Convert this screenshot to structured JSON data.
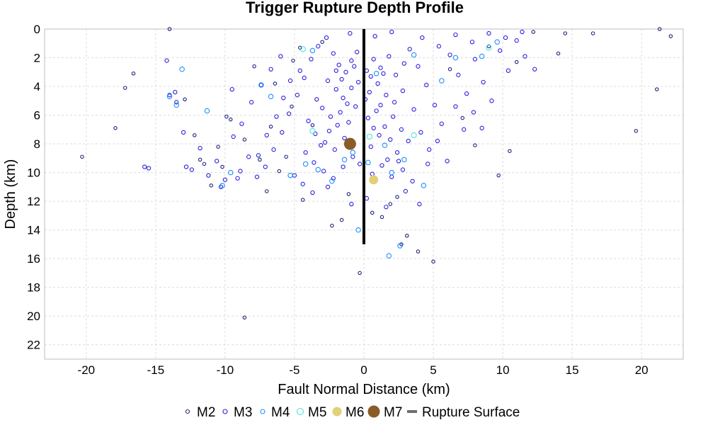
{
  "chart_data": {
    "type": "scatter",
    "title": "Trigger Rupture Depth Profile",
    "xlabel": "Fault Normal Distance (km)",
    "ylabel": "Depth (km)",
    "xlim": [
      -23,
      23
    ],
    "ylim": [
      0,
      23
    ],
    "y_inverted": true,
    "x_ticks": [
      -20,
      -15,
      -10,
      -5,
      0,
      5,
      10,
      15,
      20
    ],
    "y_ticks": [
      0,
      2,
      4,
      6,
      8,
      10,
      12,
      14,
      16,
      18,
      20,
      22
    ],
    "grid": true,
    "legend_position": "bottom",
    "series": [
      {
        "name": "M2",
        "color": "#1a237e",
        "marker": "open-circle-small",
        "points": [
          [
            -14.0,
            0.0
          ],
          [
            -8.6,
            20.1
          ],
          [
            -20.3,
            8.9
          ],
          [
            -17.9,
            6.9
          ],
          [
            -16.6,
            3.1
          ],
          [
            -17.2,
            4.1
          ],
          [
            -12.9,
            4.9
          ],
          [
            -11.5,
            9.4
          ],
          [
            -11.0,
            10.9
          ],
          [
            -10.2,
            9.6
          ],
          [
            -9.6,
            6.3
          ],
          [
            -8.6,
            7.7
          ],
          [
            -7.5,
            9.1
          ],
          [
            -7.0,
            11.3
          ],
          [
            -6.7,
            6.8
          ],
          [
            -6.1,
            9.9
          ],
          [
            -5.6,
            8.9
          ],
          [
            -5.2,
            5.4
          ],
          [
            -4.4,
            11.9
          ],
          [
            -3.7,
            6.7
          ],
          [
            -2.3,
            13.7
          ],
          [
            -1.6,
            13.3
          ],
          [
            -0.3,
            17.0
          ],
          [
            1.3,
            13.1
          ],
          [
            2.7,
            15.0
          ],
          [
            3.1,
            14.4
          ],
          [
            3.9,
            15.5
          ],
          [
            5.0,
            16.2
          ],
          [
            9.7,
            10.2
          ],
          [
            10.5,
            8.5
          ],
          [
            14.0,
            1.7
          ],
          [
            14.5,
            0.3
          ],
          [
            16.5,
            0.3
          ],
          [
            19.6,
            7.1
          ],
          [
            21.1,
            4.2
          ],
          [
            21.3,
            0.0
          ],
          [
            22.1,
            0.5
          ],
          [
            -9.9,
            6.1
          ],
          [
            -10.5,
            8.2
          ],
          [
            -11.8,
            9.1
          ],
          [
            -12.2,
            7.4
          ],
          [
            -6.4,
            3.8
          ],
          [
            -7.9,
            2.6
          ],
          [
            -5.1,
            2.2
          ],
          [
            -4.6,
            1.3
          ],
          [
            -3.0,
            0.9
          ],
          [
            0.6,
            12.8
          ],
          [
            1.9,
            12.2
          ],
          [
            -1.1,
            11.5
          ],
          [
            2.4,
            11.7
          ],
          [
            6.2,
            2.8
          ],
          [
            7.1,
            6.2
          ],
          [
            8.0,
            8.1
          ],
          [
            9.0,
            1.2
          ],
          [
            11.0,
            2.3
          ],
          [
            12.2,
            0.2
          ]
        ]
      },
      {
        "name": "M3",
        "color": "#2a1fd9",
        "marker": "open-circle",
        "points": [
          [
            -2.2,
            1.7
          ],
          [
            -1.8,
            2.5
          ],
          [
            -1.3,
            3.0
          ],
          [
            -0.9,
            2.2
          ],
          [
            -0.5,
            1.6
          ],
          [
            0.2,
            2.9
          ],
          [
            0.7,
            2.1
          ],
          [
            1.2,
            2.7
          ],
          [
            1.8,
            1.9
          ],
          [
            2.3,
            3.2
          ],
          [
            2.9,
            2.4
          ],
          [
            -2.6,
            3.6
          ],
          [
            -2.0,
            4.2
          ],
          [
            -1.5,
            4.8
          ],
          [
            -0.9,
            4.1
          ],
          [
            -0.4,
            3.7
          ],
          [
            0.4,
            4.4
          ],
          [
            1.0,
            3.8
          ],
          [
            1.6,
            4.6
          ],
          [
            2.2,
            5.1
          ],
          [
            2.8,
            4.3
          ],
          [
            -3.0,
            5.5
          ],
          [
            -2.4,
            6.1
          ],
          [
            -1.7,
            5.8
          ],
          [
            -1.1,
            6.5
          ],
          [
            -0.6,
            5.4
          ],
          [
            0.3,
            6.2
          ],
          [
            0.9,
            5.7
          ],
          [
            1.5,
            6.8
          ],
          [
            2.1,
            6.1
          ],
          [
            2.7,
            7.0
          ],
          [
            -3.5,
            7.3
          ],
          [
            -2.8,
            7.9
          ],
          [
            -2.1,
            8.4
          ],
          [
            -1.4,
            7.6
          ],
          [
            -0.8,
            8.9
          ],
          [
            0.5,
            8.2
          ],
          [
            1.1,
            7.4
          ],
          [
            1.7,
            9.1
          ],
          [
            2.4,
            8.6
          ],
          [
            3.2,
            7.8
          ],
          [
            -4.2,
            8.6
          ],
          [
            -3.6,
            9.3
          ],
          [
            -2.9,
            9.9
          ],
          [
            -2.2,
            10.4
          ],
          [
            -1.5,
            9.6
          ],
          [
            0.6,
            10.1
          ],
          [
            1.3,
            9.5
          ],
          [
            2.0,
            10.3
          ],
          [
            2.8,
            9.8
          ],
          [
            3.5,
            10.6
          ],
          [
            -4.8,
            4.6
          ],
          [
            -4.3,
            3.4
          ],
          [
            -3.8,
            2.1
          ],
          [
            -3.3,
            1.2
          ],
          [
            -2.7,
            0.6
          ],
          [
            3.3,
            1.4
          ],
          [
            3.9,
            2.6
          ],
          [
            4.5,
            3.9
          ],
          [
            5.1,
            5.3
          ],
          [
            5.6,
            6.6
          ],
          [
            6.2,
            1.8
          ],
          [
            6.8,
            3.2
          ],
          [
            7.4,
            4.5
          ],
          [
            8.0,
            2.1
          ],
          [
            8.6,
            3.7
          ],
          [
            9.2,
            5.0
          ],
          [
            9.8,
            1.5
          ],
          [
            10.4,
            2.9
          ],
          [
            11.0,
            0.8
          ],
          [
            11.6,
            1.9
          ],
          [
            12.3,
            2.8
          ],
          [
            -5.4,
            5.9
          ],
          [
            -5.9,
            7.2
          ],
          [
            -6.5,
            8.4
          ],
          [
            -7.1,
            9.6
          ],
          [
            -7.7,
            10.3
          ],
          [
            -8.3,
            8.9
          ],
          [
            -8.9,
            9.9
          ],
          [
            -9.4,
            7.5
          ],
          [
            -10.0,
            10.5
          ],
          [
            -10.6,
            9.2
          ],
          [
            -11.2,
            10.2
          ],
          [
            -11.8,
            8.3
          ],
          [
            -12.4,
            9.8
          ],
          [
            -13.0,
            7.2
          ],
          [
            -13.6,
            4.4
          ],
          [
            -14.2,
            2.2
          ],
          [
            -15.8,
            9.6
          ],
          [
            -6.0,
            1.9
          ],
          [
            -6.7,
            2.8
          ],
          [
            -7.4,
            3.9
          ],
          [
            -8.1,
            5.1
          ],
          [
            -8.8,
            6.6
          ],
          [
            -9.5,
            4.2
          ],
          [
            -5.0,
            10.2
          ],
          [
            -4.4,
            10.8
          ],
          [
            -3.7,
            11.4
          ],
          [
            -2.6,
            11.0
          ],
          [
            -0.9,
            12.2
          ],
          [
            0.2,
            11.8
          ],
          [
            1.6,
            12.4
          ],
          [
            3.0,
            11.3
          ],
          [
            4.0,
            12.2
          ],
          [
            4.6,
            9.4
          ],
          [
            5.3,
            7.8
          ],
          [
            6.0,
            9.2
          ],
          [
            6.6,
            5.4
          ],
          [
            7.2,
            7.0
          ],
          [
            7.9,
            5.8
          ],
          [
            8.5,
            6.9
          ],
          [
            4.2,
            0.6
          ],
          [
            5.4,
            1.2
          ],
          [
            6.6,
            0.4
          ],
          [
            7.8,
            0.9
          ],
          [
            9.0,
            0.3
          ],
          [
            10.2,
            0.6
          ],
          [
            11.4,
            0.2
          ],
          [
            -1.0,
            0.3
          ],
          [
            0.8,
            0.5
          ],
          [
            2.0,
            0.2
          ],
          [
            -2.0,
            2.9
          ],
          [
            -1.6,
            3.5
          ],
          [
            -0.7,
            2.6
          ],
          [
            0.5,
            3.3
          ],
          [
            1.4,
            3.1
          ],
          [
            -1.2,
            5.2
          ],
          [
            0.1,
            4.9
          ],
          [
            1.2,
            5.3
          ],
          [
            -2.5,
            7.1
          ],
          [
            -1.9,
            6.7
          ],
          [
            0.7,
            6.9
          ],
          [
            1.9,
            7.7
          ],
          [
            -3.1,
            8.1
          ],
          [
            -0.3,
            9.4
          ],
          [
            2.5,
            9.2
          ],
          [
            -4.0,
            6.4
          ],
          [
            -3.4,
            4.9
          ],
          [
            3.6,
            5.6
          ],
          [
            4.1,
            7.2
          ],
          [
            4.7,
            8.4
          ],
          [
            -4.6,
            2.9
          ],
          [
            -5.3,
            3.6
          ],
          [
            -5.8,
            4.8
          ],
          [
            -6.3,
            6.1
          ],
          [
            -7.0,
            7.4
          ],
          [
            -7.6,
            8.8
          ],
          [
            -9.1,
            10.4
          ],
          [
            -10.3,
            11.0
          ],
          [
            -12.8,
            9.6
          ],
          [
            -15.5,
            9.7
          ],
          [
            -13.5,
            5.1
          ],
          [
            -14.0,
            4.6
          ]
        ]
      },
      {
        "name": "M4",
        "color": "#1e90ff",
        "marker": "open-circle",
        "points": [
          [
            -13.1,
            2.8
          ],
          [
            -14.0,
            4.7
          ],
          [
            -13.5,
            5.3
          ],
          [
            -11.3,
            5.7
          ],
          [
            -10.2,
            10.9
          ],
          [
            -9.6,
            10.0
          ],
          [
            -7.4,
            3.9
          ],
          [
            -6.7,
            4.7
          ],
          [
            -5.3,
            10.2
          ],
          [
            -4.2,
            9.4
          ],
          [
            -3.7,
            1.5
          ],
          [
            -2.3,
            10.6
          ],
          [
            -1.4,
            9.1
          ],
          [
            -0.4,
            14.0
          ],
          [
            0.9,
            3.1
          ],
          [
            1.5,
            8.1
          ],
          [
            2.0,
            10.0
          ],
          [
            2.9,
            9.1
          ],
          [
            3.6,
            1.8
          ],
          [
            4.3,
            10.9
          ],
          [
            5.6,
            3.6
          ],
          [
            6.6,
            2.0
          ],
          [
            8.5,
            1.9
          ],
          [
            9.6,
            0.9
          ],
          [
            0.3,
            9.3
          ],
          [
            -0.8,
            8.6
          ],
          [
            1.8,
            15.8
          ],
          [
            2.6,
            15.1
          ],
          [
            -3.3,
            9.8
          ]
        ]
      },
      {
        "name": "M5",
        "color": "#40e0d0",
        "marker": "open-circle-large",
        "points": [
          [
            3.6,
            7.4
          ],
          [
            -0.9,
            7.8
          ],
          [
            0.4,
            7.5
          ],
          [
            -3.7,
            7.1
          ],
          [
            9.0,
            1.3
          ],
          [
            -4.4,
            1.4
          ]
        ]
      },
      {
        "name": "M6",
        "color": "#e2cf78",
        "marker": "filled-circle",
        "points": [
          [
            0.7,
            10.5
          ]
        ]
      },
      {
        "name": "M7",
        "color": "#8a5c28",
        "marker": "filled-circle-large",
        "points": [
          [
            -1.0,
            8.0
          ]
        ]
      },
      {
        "name": "Rupture Surface",
        "color": "#000000",
        "marker": "line",
        "points": [
          [
            0,
            0
          ],
          [
            0,
            15
          ]
        ]
      }
    ]
  }
}
